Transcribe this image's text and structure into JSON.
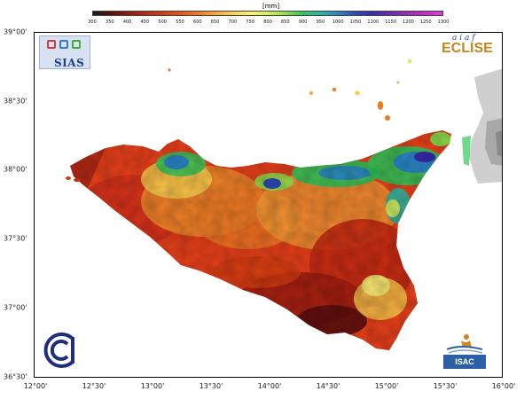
{
  "legend": {
    "unit": "[mm]",
    "ticks": [
      "300",
      "350",
      "400",
      "450",
      "500",
      "550",
      "600",
      "650",
      "700",
      "750",
      "800",
      "850",
      "900",
      "950",
      "1000",
      "1050",
      "1100",
      "1150",
      "1200",
      "1250",
      "1300"
    ],
    "colors": [
      "#1a1a1a",
      "#5a0d0d",
      "#8c1a10",
      "#b52a12",
      "#d63c10",
      "#e8541a",
      "#f07a24",
      "#f8a43a",
      "#fcd04e",
      "#f8f078",
      "#d8ee5c",
      "#8ee04a",
      "#30c85a",
      "#28b8a4",
      "#2a86c8",
      "#2a4ab8",
      "#3a2ab0",
      "#6a2ab8",
      "#9a2ac0",
      "#c82ac8",
      "#e03ae0"
    ]
  },
  "axes": {
    "lat_labels": [
      "39°00'",
      "38°30'",
      "38°00'",
      "37°30'",
      "37°00'",
      "36°30'"
    ],
    "lon_labels": [
      "12°00'",
      "12°30'",
      "13°00'",
      "13°30'",
      "14°00'",
      "14°30'",
      "15°00'",
      "15°30'",
      "16°00'"
    ]
  },
  "logos": {
    "sias": "SIAS",
    "eclise": "ECLISE",
    "eclise_top": "a i a f",
    "cnr": "CNR",
    "isac": "ISAC"
  }
}
